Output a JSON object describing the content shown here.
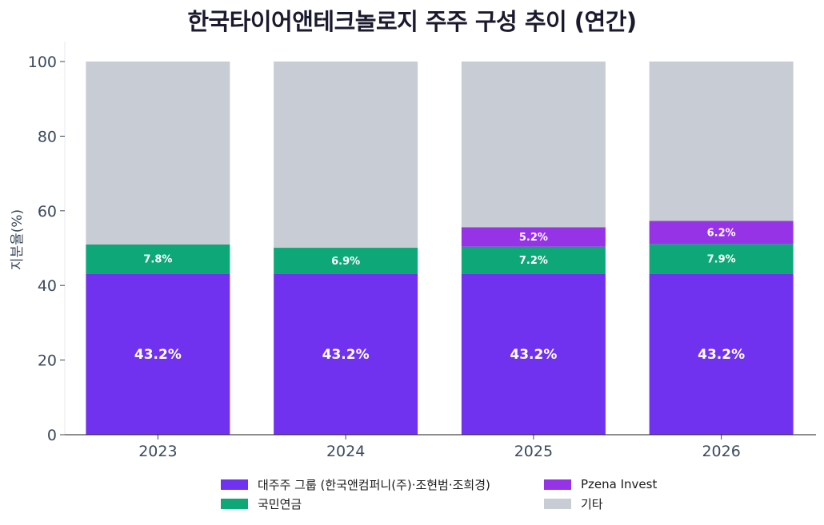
{
  "title": "한국타이어앤테크놀로지 주주 구성 추이 (연간)",
  "chart_data": {
    "type": "bar",
    "stacked": true,
    "title": "한국타이어앤테크놀로지 주주 구성 추이 (연간)",
    "xlabel": "",
    "ylabel": "지분율(%)",
    "ylim": [
      0,
      100
    ],
    "yticks": [
      0,
      20,
      40,
      60,
      80,
      100
    ],
    "categories": [
      "2023",
      "2024",
      "2025",
      "2026"
    ],
    "grid": false,
    "legend_position": "bottom",
    "series": [
      {
        "name": "대주주 그룹 (한국앤컴퍼니(주)·조현범·조희경)",
        "color": "#7132f0",
        "values": [
          43.2,
          43.2,
          43.2,
          43.2
        ],
        "labels": [
          "43.2%",
          "43.2%",
          "43.2%",
          "43.2%"
        ]
      },
      {
        "name": "국민연금",
        "color": "#0ea878",
        "values": [
          7.8,
          6.9,
          7.2,
          7.9
        ],
        "labels": [
          "7.8%",
          "6.9%",
          "7.2%",
          "7.9%"
        ]
      },
      {
        "name": "Pzena Invest",
        "color": "#9633e6",
        "values": [
          0,
          0,
          5.2,
          6.2
        ],
        "labels": [
          "",
          "",
          "5.2%",
          "6.2%"
        ]
      },
      {
        "name": "기타",
        "color": "#c8ccd4",
        "values": [
          49.0,
          49.9,
          44.4,
          42.7
        ],
        "labels": [
          "",
          "",
          "",
          ""
        ]
      }
    ]
  },
  "legend": {
    "items": [
      {
        "label": "대주주 그룹 (한국앤컴퍼니(주)·조현범·조희경)",
        "color": "#7132f0"
      },
      {
        "label": "Pzena Invest",
        "color": "#9633e6"
      },
      {
        "label": "국민연금",
        "color": "#0ea878"
      },
      {
        "label": "기타",
        "color": "#c8ccd4"
      }
    ]
  }
}
